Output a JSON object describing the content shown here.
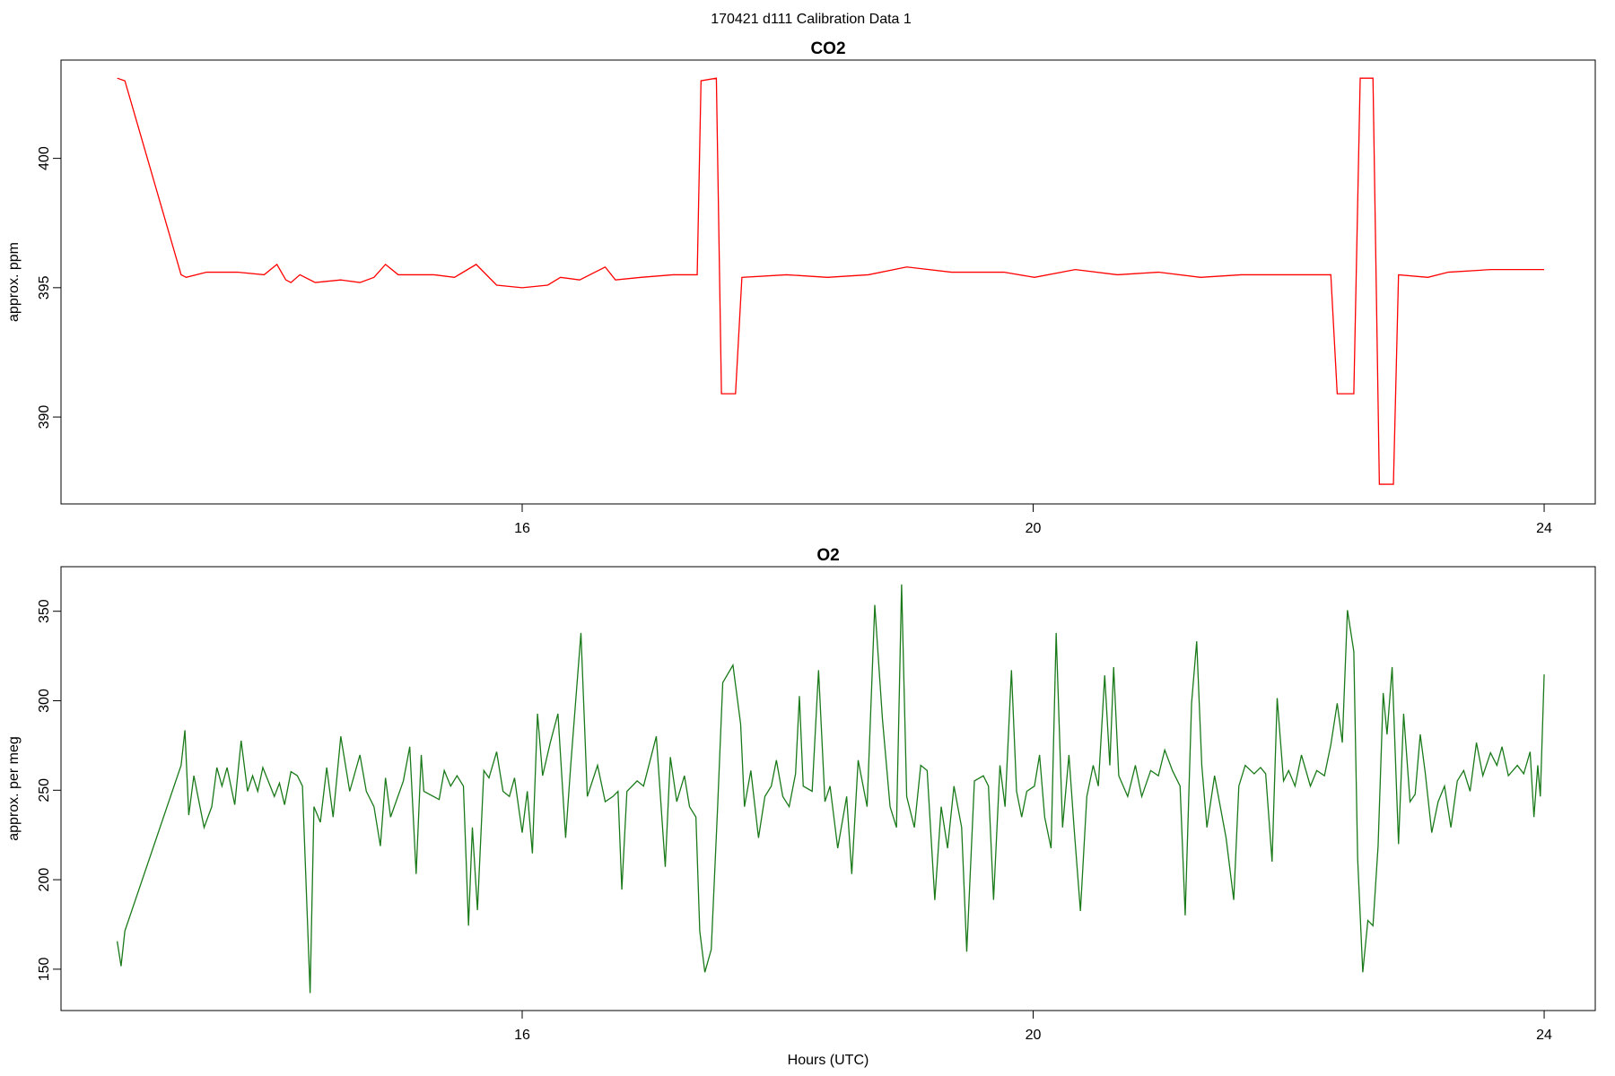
{
  "title": "170421   d111   Calibration Data 1",
  "chart_data": [
    {
      "type": "line",
      "title": "CO2",
      "y_label": "approx. ppm",
      "xlim": [
        12.39,
        24.4
      ],
      "ylim": [
        386.64,
        403.8
      ],
      "xticks": [
        16,
        20,
        24
      ],
      "yticks": [
        390,
        395,
        400
      ],
      "series": [
        {
          "color": "#ff0000",
          "x": [
            12.83,
            12.89,
            13.33,
            13.37,
            13.53,
            13.77,
            13.98,
            14.08,
            14.15,
            14.19,
            14.26,
            14.38,
            14.58,
            14.73,
            14.84,
            14.93,
            15.03,
            15.31,
            15.47,
            15.64,
            15.8,
            16.0,
            16.2,
            16.3,
            16.45,
            16.65,
            16.73,
            16.93,
            17.18,
            17.37,
            17.4,
            17.52,
            17.56,
            17.67,
            17.72,
            18.07,
            18.39,
            18.71,
            19.01,
            19.36,
            19.77,
            20.01,
            20.33,
            20.66,
            20.98,
            21.31,
            21.63,
            21.96,
            22.33,
            22.38,
            22.51,
            22.56,
            22.66,
            22.71,
            22.82,
            22.86,
            23.09,
            23.25,
            23.58,
            24.0
          ],
          "values": [
            403.1,
            403.0,
            395.5,
            395.4,
            395.6,
            395.6,
            395.5,
            395.9,
            395.3,
            395.2,
            395.5,
            395.2,
            395.3,
            395.2,
            395.4,
            395.9,
            395.5,
            395.5,
            395.4,
            395.9,
            395.1,
            395.0,
            395.1,
            395.4,
            395.3,
            395.8,
            395.3,
            395.4,
            395.5,
            395.5,
            403.0,
            403.1,
            390.9,
            390.9,
            395.4,
            395.5,
            395.4,
            395.5,
            395.8,
            395.6,
            395.6,
            395.4,
            395.7,
            395.5,
            395.6,
            395.4,
            395.5,
            395.5,
            395.5,
            390.9,
            390.9,
            403.1,
            403.1,
            387.4,
            387.4,
            395.5,
            395.4,
            395.6,
            395.7,
            395.7
          ]
        }
      ]
    },
    {
      "type": "line",
      "title": "O2",
      "y_label": "approx. per meg",
      "x_label": "Hours (UTC)",
      "xlim": [
        12.39,
        24.4
      ],
      "ylim": [
        126.9,
        374.9
      ],
      "xticks": [
        16,
        20,
        24
      ],
      "yticks": [
        150,
        200,
        250,
        300,
        350
      ],
      "series": [
        {
          "color": "#1a7a1a",
          "x": [
            12.83,
            12.86,
            12.89,
            13.33,
            13.36,
            13.39,
            13.43,
            13.47,
            13.51,
            13.57,
            13.61,
            13.65,
            13.69,
            13.75,
            13.8,
            13.85,
            13.89,
            13.93,
            13.97,
            14.06,
            14.1,
            14.14,
            14.19,
            14.24,
            14.28,
            14.34,
            14.37,
            14.42,
            14.47,
            14.52,
            14.58,
            14.65,
            14.73,
            14.78,
            14.84,
            14.89,
            14.93,
            14.97,
            15.07,
            15.12,
            15.17,
            15.21,
            15.23,
            15.35,
            15.39,
            15.44,
            15.49,
            15.54,
            15.58,
            15.61,
            15.65,
            15.7,
            15.74,
            15.8,
            15.85,
            15.9,
            15.94,
            16.0,
            16.04,
            16.08,
            16.12,
            16.16,
            16.22,
            16.28,
            16.34,
            16.38,
            16.46,
            16.51,
            16.59,
            16.65,
            16.71,
            16.75,
            16.78,
            16.82,
            16.9,
            16.95,
            17.05,
            17.12,
            17.16,
            17.21,
            17.27,
            17.31,
            17.36,
            17.39,
            17.43,
            17.48,
            17.53,
            17.57,
            17.65,
            17.71,
            17.74,
            17.79,
            17.85,
            17.9,
            17.95,
            17.99,
            18.04,
            18.09,
            18.14,
            18.17,
            18.2,
            18.27,
            18.32,
            18.37,
            18.41,
            18.47,
            18.54,
            18.58,
            18.63,
            18.7,
            18.76,
            18.82,
            18.88,
            18.93,
            18.97,
            19.01,
            19.07,
            19.12,
            19.17,
            19.23,
            19.28,
            19.33,
            19.38,
            19.44,
            19.48,
            19.54,
            19.61,
            19.65,
            19.69,
            19.74,
            19.78,
            19.83,
            19.87,
            19.91,
            19.95,
            20.01,
            20.05,
            20.09,
            20.14,
            20.18,
            20.23,
            20.28,
            20.32,
            20.37,
            20.42,
            20.47,
            20.51,
            20.56,
            20.6,
            20.63,
            20.67,
            20.74,
            20.8,
            20.85,
            20.92,
            20.98,
            21.03,
            21.09,
            21.15,
            21.19,
            21.24,
            21.28,
            21.32,
            21.36,
            21.42,
            21.45,
            21.51,
            21.57,
            21.61,
            21.66,
            21.73,
            21.78,
            21.82,
            21.87,
            21.91,
            21.96,
            22.0,
            22.05,
            22.1,
            22.17,
            22.22,
            22.28,
            22.33,
            22.38,
            22.42,
            22.46,
            22.51,
            22.54,
            22.58,
            22.62,
            22.66,
            22.7,
            22.74,
            22.77,
            22.81,
            22.86,
            22.9,
            22.95,
            22.99,
            23.03,
            23.07,
            23.12,
            23.17,
            23.22,
            23.27,
            23.32,
            23.37,
            23.42,
            23.47,
            23.52,
            23.58,
            23.63,
            23.67,
            23.72,
            23.79,
            23.84,
            23.89,
            23.92,
            23.95,
            23.97,
            24.0
          ],
          "values": [
            165.6,
            151.7,
            171.4,
            263.9,
            283.5,
            236.1,
            258.1,
            243.6,
            229.2,
            240.8,
            262.7,
            252.3,
            262.7,
            241.9,
            277.7,
            249.4,
            258.1,
            249.4,
            262.7,
            246.5,
            254.0,
            241.9,
            260.4,
            258.1,
            252.3,
            136.7,
            240.8,
            232.1,
            262.7,
            235.0,
            280.1,
            249.4,
            269.7,
            249.4,
            240.8,
            218.8,
            256.9,
            235.0,
            255.2,
            274.3,
            203.2,
            269.7,
            249.4,
            244.8,
            261.0,
            252.3,
            258.1,
            252.3,
            174.3,
            229.2,
            183.0,
            261.0,
            256.9,
            271.5,
            249.4,
            246.5,
            256.9,
            226.3,
            249.4,
            214.7,
            292.8,
            258.1,
            276.6,
            292.8,
            223.4,
            263.9,
            337.9,
            246.5,
            263.9,
            243.6,
            246.5,
            249.4,
            194.5,
            249.4,
            255.2,
            252.3,
            280.1,
            207.2,
            268.5,
            243.6,
            258.1,
            240.8,
            235.0,
            171.4,
            148.3,
            161.0,
            240.8,
            310.1,
            319.9,
            287.0,
            240.8,
            261.0,
            223.4,
            246.5,
            252.3,
            266.8,
            246.5,
            240.8,
            259.2,
            302.6,
            252.3,
            249.4,
            317.1,
            243.6,
            252.3,
            217.6,
            246.5,
            203.2,
            266.8,
            240.8,
            353.5,
            289.9,
            240.8,
            229.2,
            365.0,
            246.5,
            229.2,
            263.9,
            261.0,
            188.7,
            240.8,
            217.6,
            252.3,
            229.2,
            159.8,
            255.2,
            258.1,
            252.3,
            188.7,
            263.9,
            240.8,
            317.1,
            249.4,
            235.0,
            249.4,
            252.3,
            269.7,
            235.0,
            217.6,
            337.9,
            229.2,
            269.7,
            229.2,
            182.5,
            246.5,
            263.9,
            252.3,
            314.2,
            263.9,
            318.8,
            258.1,
            246.5,
            263.9,
            246.5,
            261.0,
            258.1,
            272.5,
            261.0,
            252.3,
            180.1,
            298.6,
            333.2,
            263.9,
            229.2,
            258.1,
            246.5,
            223.4,
            188.7,
            252.3,
            263.9,
            259.2,
            262.7,
            259.2,
            210.1,
            301.5,
            255.2,
            261.0,
            252.3,
            269.7,
            252.3,
            261.0,
            258.1,
            275.4,
            298.6,
            276.6,
            350.6,
            327.5,
            211.8,
            148.3,
            177.2,
            174.3,
            218.8,
            304.3,
            281.2,
            318.8,
            219.9,
            292.8,
            243.6,
            247.7,
            281.2,
            259.2,
            226.3,
            243.6,
            252.3,
            229.2,
            255.2,
            261.0,
            249.4,
            276.6,
            258.1,
            270.9,
            263.9,
            274.3,
            258.1,
            263.9,
            259.2,
            271.5,
            235.0,
            263.9,
            246.5,
            314.7
          ]
        }
      ]
    }
  ]
}
